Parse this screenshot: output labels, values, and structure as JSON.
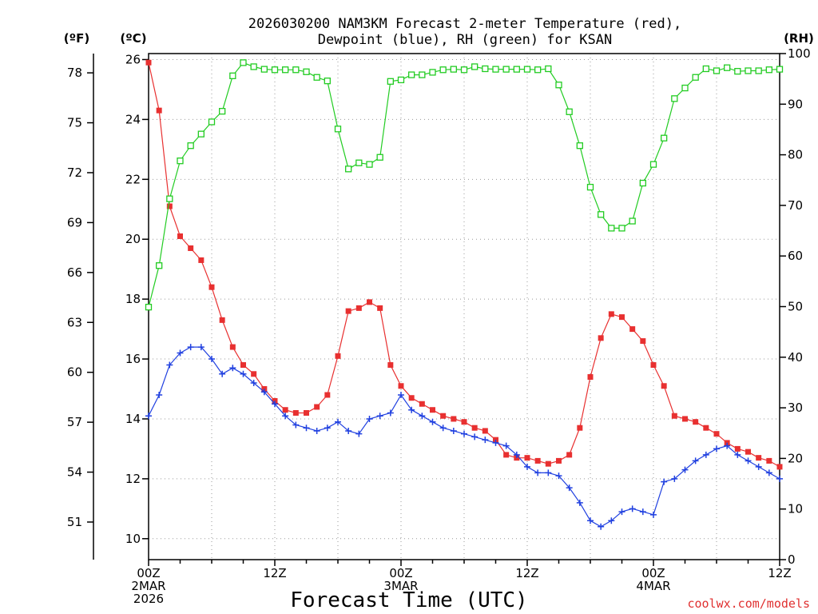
{
  "chart_data": {
    "type": "line",
    "title_line1": "2026030200 NAM3KM Forecast 2-meter Temperature (red),",
    "title_line2": "Dewpoint (blue), RH (green) for KSAN",
    "xlabel": "Forecast Time (UTC)",
    "credit": "coolwx.com/models",
    "units": {
      "fahrenheit": "(ºF)",
      "celsius": "(ºC)",
      "rh": "(RH)"
    },
    "x_range_hours": [
      0,
      60
    ],
    "x_ticks": [
      {
        "hour": 0,
        "lines": [
          "00Z",
          "2MAR",
          "2026"
        ]
      },
      {
        "hour": 12,
        "lines": [
          "12Z"
        ]
      },
      {
        "hour": 24,
        "lines": [
          "00Z",
          "3MAR"
        ]
      },
      {
        "hour": 36,
        "lines": [
          "12Z"
        ]
      },
      {
        "hour": 48,
        "lines": [
          "00Z",
          "4MAR"
        ]
      },
      {
        "hour": 60,
        "lines": [
          "12Z"
        ]
      }
    ],
    "celsius_range": [
      9.3,
      26.2
    ],
    "celsius_ticks": [
      "10",
      "12",
      "14",
      "16",
      "18",
      "20",
      "22",
      "24",
      "26"
    ],
    "fahrenheit_ticks": [
      "51",
      "54",
      "57",
      "60",
      "63",
      "66",
      "69",
      "72",
      "75",
      "78"
    ],
    "rh_range": [
      0,
      100
    ],
    "rh_ticks": [
      "0",
      "10",
      "20",
      "30",
      "40",
      "50",
      "60",
      "70",
      "80",
      "90",
      "100"
    ],
    "hours": [
      0,
      1,
      2,
      3,
      4,
      5,
      6,
      7,
      8,
      9,
      10,
      11,
      12,
      13,
      14,
      15,
      16,
      17,
      18,
      19,
      20,
      21,
      22,
      23,
      24,
      25,
      26,
      27,
      28,
      29,
      30,
      31,
      32,
      33,
      34,
      35,
      36,
      37,
      38,
      39,
      40,
      41,
      42,
      43,
      44,
      45,
      46,
      47,
      48,
      49,
      50,
      51,
      52,
      53,
      54,
      55,
      56,
      57,
      58,
      59,
      60
    ],
    "series": [
      {
        "name": "2-meter Temperature",
        "unit": "C",
        "color": "#e83030",
        "marker": "filled-square",
        "values": [
          25.9,
          24.3,
          21.1,
          20.1,
          19.7,
          19.3,
          18.4,
          17.3,
          16.4,
          15.8,
          15.5,
          15.0,
          14.6,
          14.3,
          14.2,
          14.2,
          14.4,
          14.8,
          16.1,
          17.6,
          17.7,
          17.9,
          17.7,
          15.8,
          15.1,
          14.7,
          14.5,
          14.3,
          14.1,
          14.0,
          13.9,
          13.7,
          13.6,
          13.3,
          12.8,
          12.7,
          12.7,
          12.6,
          12.5,
          12.6,
          12.8,
          13.7,
          15.4,
          16.7,
          17.5,
          17.4,
          17.0,
          16.6,
          15.8,
          15.1,
          14.1,
          14.0,
          13.9,
          13.7,
          13.5,
          13.2,
          13.0,
          12.9,
          12.7,
          12.6,
          12.4
        ]
      },
      {
        "name": "Dewpoint",
        "unit": "C",
        "color": "#2040e0",
        "marker": "plus",
        "values": [
          14.1,
          14.8,
          15.8,
          16.2,
          16.4,
          16.4,
          16.0,
          15.5,
          15.7,
          15.5,
          15.2,
          14.9,
          14.5,
          14.1,
          13.8,
          13.7,
          13.6,
          13.7,
          13.9,
          13.6,
          13.5,
          14.0,
          14.1,
          14.2,
          14.8,
          14.3,
          14.1,
          13.9,
          13.7,
          13.6,
          13.5,
          13.4,
          13.3,
          13.2,
          13.1,
          12.8,
          12.4,
          12.2,
          12.2,
          12.1,
          11.7,
          11.2,
          10.6,
          10.4,
          10.6,
          10.9,
          11.0,
          10.9,
          10.8,
          11.9,
          12.0,
          12.3,
          12.6,
          12.8,
          13.0,
          13.1,
          12.8,
          12.6,
          12.4,
          12.2,
          12.0
        ]
      },
      {
        "name": "RH",
        "unit": "%",
        "color": "#22cc22",
        "marker": "open-square",
        "values": [
          49.9,
          58.1,
          71.3,
          78.8,
          81.8,
          84.1,
          86.5,
          88.6,
          95.6,
          98.2,
          97.4,
          96.9,
          96.8,
          96.8,
          96.8,
          96.4,
          95.3,
          94.6,
          85.1,
          77.2,
          78.4,
          78.1,
          79.5,
          94.5,
          94.8,
          95.8,
          95.8,
          96.3,
          96.8,
          96.9,
          96.8,
          97.4,
          97.0,
          96.9,
          96.9,
          96.9,
          96.9,
          96.8,
          97.0,
          93.8,
          88.5,
          81.8,
          73.6,
          68.2,
          65.5,
          65.5,
          66.9,
          74.4,
          78.1,
          83.3,
          91.1,
          93.2,
          95.3,
          97.0,
          96.6,
          97.2,
          96.5,
          96.6,
          96.6,
          96.8,
          96.9
        ]
      }
    ]
  }
}
